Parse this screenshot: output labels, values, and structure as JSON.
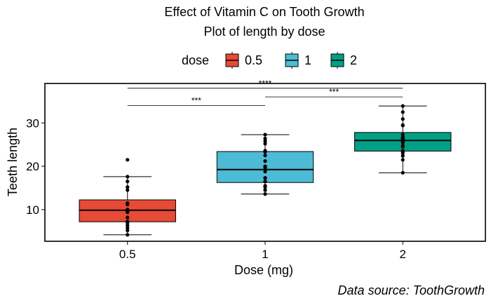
{
  "chart_data": {
    "type": "box",
    "title": "Effect of Vitamin C on Tooth Growth",
    "subtitle": "Plot of length by dose",
    "xlabel": "Dose (mg)",
    "ylabel": "Teeth length",
    "caption": "Data source: ToothGrowth",
    "legend": {
      "title": "dose",
      "position": "top"
    },
    "categories": [
      "0.5",
      "1",
      "2"
    ],
    "yticks": [
      10,
      20,
      30
    ],
    "ylim": [
      2.7,
      39.1
    ],
    "grid": false,
    "series": [
      {
        "name": "0.5",
        "color": "#E64B35",
        "box": {
          "min": 4.2,
          "q1": 7.2,
          "median": 9.85,
          "q3": 12.25,
          "max": 17.6
        },
        "points": [
          4.2,
          11.5,
          7.3,
          5.8,
          6.4,
          10.0,
          11.2,
          11.2,
          5.2,
          7.0,
          15.2,
          21.5,
          17.6,
          9.7,
          14.5,
          10.0,
          8.2,
          9.4,
          16.5,
          9.7
        ]
      },
      {
        "name": "1",
        "color": "#4DBBD5",
        "box": {
          "min": 13.6,
          "q1": 16.25,
          "median": 19.25,
          "q3": 23.4,
          "max": 27.3
        },
        "points": [
          16.5,
          16.5,
          15.2,
          17.3,
          22.5,
          17.3,
          13.6,
          14.5,
          18.8,
          15.5,
          19.7,
          23.3,
          23.6,
          26.4,
          20.0,
          25.2,
          25.8,
          21.2,
          14.5,
          27.3
        ]
      },
      {
        "name": "2",
        "color": "#00A087",
        "box": {
          "min": 18.5,
          "q1": 23.5,
          "median": 25.95,
          "q3": 27.8,
          "max": 33.9
        },
        "points": [
          23.6,
          18.5,
          33.9,
          25.5,
          26.4,
          32.5,
          26.7,
          21.5,
          23.3,
          29.5,
          25.5,
          26.4,
          22.4,
          24.5,
          24.8,
          30.9,
          26.4,
          27.3,
          29.4,
          23.0
        ]
      }
    ],
    "comparisons": [
      {
        "from": "0.5",
        "to": "1",
        "label": "***",
        "y": 34.0
      },
      {
        "from": "1",
        "to": "2",
        "label": "***",
        "y": 36.0
      },
      {
        "from": "0.5",
        "to": "2",
        "label": "****",
        "y": 38.0
      }
    ]
  }
}
